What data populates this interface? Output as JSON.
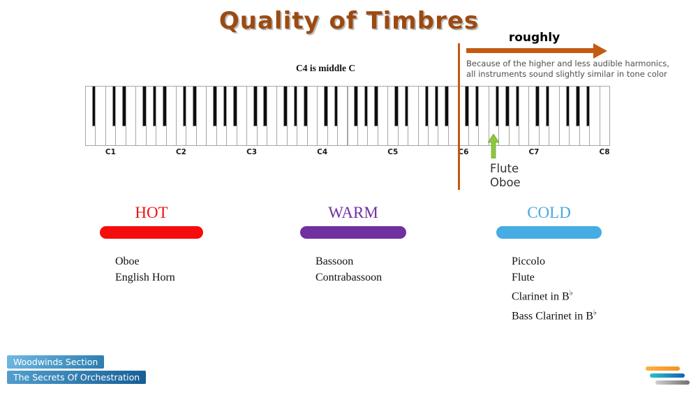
{
  "slide": {
    "title": "Quality of Timbres",
    "title_color": "#9C4A12"
  },
  "annotation": {
    "roughly_label": "roughly",
    "note_line1": "Because of the higher and less audible harmonics,",
    "note_line2": "all instruments sound slightly similar in tone color",
    "arrow_color": "#C45911",
    "divider_color": "#C45911"
  },
  "keyboard": {
    "caption": "C4 is middle C",
    "start_note": "A0",
    "white_key_count": 52,
    "octave_labels": [
      "C1",
      "C2",
      "C3",
      "C4",
      "C5",
      "C6",
      "C7",
      "C8"
    ],
    "pointer": {
      "arrow_color": "#8DC63F",
      "labels": [
        "Flute",
        "Oboe"
      ]
    }
  },
  "categories": [
    {
      "name": "HOT",
      "text_color": "#EE1111",
      "bar_color": "#F50D0D",
      "items": [
        "Oboe",
        "English Horn"
      ]
    },
    {
      "name": "WARM",
      "text_color": "#7030A0",
      "bar_color": "#7030A0",
      "items": [
        "Bassoon",
        "Contrabassoon"
      ]
    },
    {
      "name": "COLD",
      "text_color": "#47A9E1",
      "bar_color": "#45ACE4",
      "items": [
        "Piccolo",
        "Flute",
        "Clarinet in B♭",
        "Bass Clarinet in B♭"
      ]
    }
  ],
  "footer": {
    "badges": [
      {
        "label": "Woodwinds Section"
      },
      {
        "label": "The Secrets Of Orchestration"
      }
    ],
    "logo_bar_colors": [
      [
        "#FBB045",
        "#F5911E"
      ],
      [
        "#29C0C8",
        "#1464B4"
      ],
      [
        "#D0D0D0",
        "#707070"
      ]
    ]
  }
}
